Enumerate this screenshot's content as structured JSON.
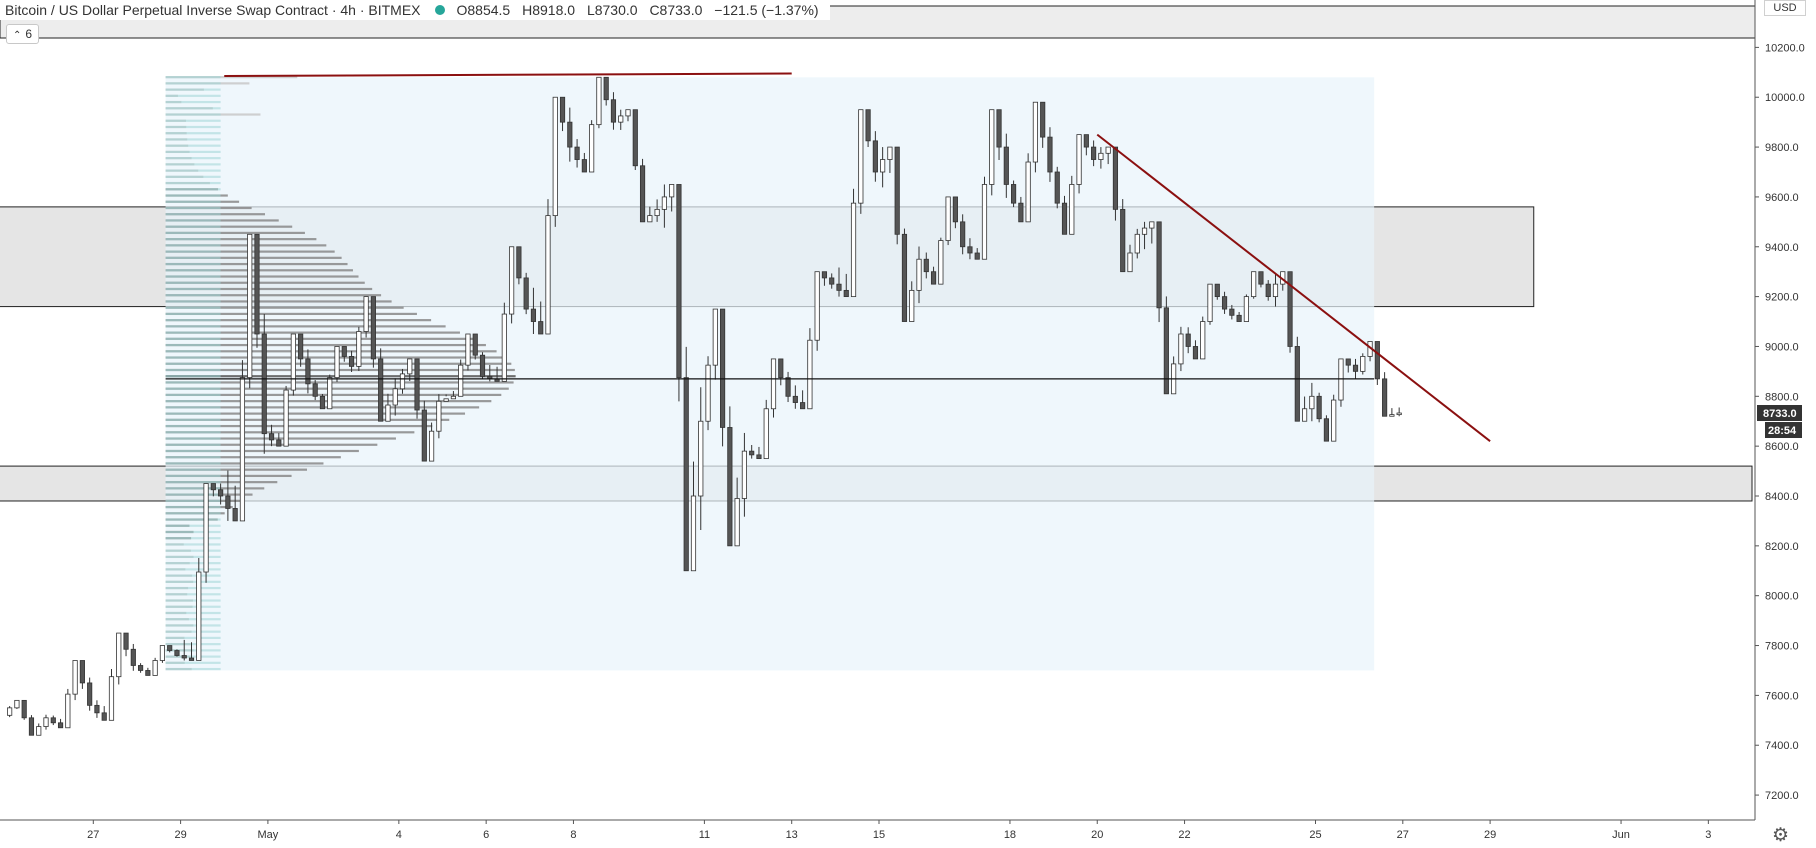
{
  "header": {
    "title": "Bitcoin / US Dollar Perpetual Inverse Swap Contract · 4h · BITMEX",
    "open": "O8854.5",
    "high": "H8918.0",
    "low": "L8730.0",
    "close": "C8733.0",
    "change": "−121.5 (−1.37%)",
    "status_color": "#26a69a"
  },
  "collapse_button": {
    "label": "6",
    "icon": "chevron-up-icon"
  },
  "currency_label": "USD",
  "settings_icon": "gear-icon",
  "price_labels": {
    "last": "8733.0",
    "countdown": "28:54"
  },
  "colors": {
    "bull_body": "#ffffff",
    "bear_body": "#555555",
    "wick": "#333333",
    "trendline": "#8b1010",
    "zone_fill": "#e5e5e5",
    "range_fill": "#e8f4fb",
    "volume_profile": "#888888"
  },
  "chart_data": {
    "type": "candlestick",
    "title": "Bitcoin / US Dollar Perpetual Inverse Swap Contract · 4h · BITMEX",
    "interval": "4h",
    "y_axis": {
      "ticks": [
        7200,
        7400,
        7600,
        7800,
        8000,
        8200,
        8400,
        8600,
        8800,
        9000,
        9200,
        9400,
        9600,
        9800,
        10000,
        10200
      ],
      "tick_labels": [
        "7200.0",
        "7400.0",
        "7600.0",
        "7800.0",
        "8000.0",
        "8200.0",
        "8400.0",
        "8600.0",
        "8800.0",
        "9000.0",
        "9200.0",
        "9400.0",
        "9600.0",
        "9800.0",
        "10000.0",
        "10200.0"
      ],
      "range": [
        7100,
        10350
      ],
      "position": "right"
    },
    "x_axis": {
      "ticks": [
        "Apr 27",
        "Apr 29",
        "May 1",
        "May 4",
        "May 6",
        "May 8",
        "May 11",
        "May 13",
        "May 15",
        "May 18",
        "May 20",
        "May 22",
        "May 25",
        "May 27",
        "May 29",
        "Jun 1",
        "Jun 3"
      ],
      "tick_labels": [
        "27",
        "29",
        "May",
        "4",
        "6",
        "8",
        "11",
        "13",
        "15",
        "18",
        "20",
        "22",
        "25",
        "27",
        "29",
        "Jun",
        "3"
      ],
      "range": [
        "2020-04-25",
        "2020-06-04"
      ]
    },
    "candles_daily": [
      {
        "date": "2020-04-25",
        "open": 7520,
        "high": 7580,
        "low": 7440,
        "close": 7510
      },
      {
        "date": "2020-04-26",
        "open": 7510,
        "high": 7740,
        "low": 7470,
        "close": 7560
      },
      {
        "date": "2020-04-27",
        "open": 7560,
        "high": 7850,
        "low": 7500,
        "close": 7720
      },
      {
        "date": "2020-04-28",
        "open": 7720,
        "high": 7800,
        "low": 7680,
        "close": 7760
      },
      {
        "date": "2020-04-29",
        "open": 7760,
        "high": 8450,
        "low": 7740,
        "close": 8400
      },
      {
        "date": "2020-04-30",
        "open": 8400,
        "high": 9450,
        "low": 8300,
        "close": 8650
      },
      {
        "date": "2020-05-01",
        "open": 8650,
        "high": 9050,
        "low": 8600,
        "close": 8850
      },
      {
        "date": "2020-05-02",
        "open": 8850,
        "high": 9000,
        "low": 8750,
        "close": 8920
      },
      {
        "date": "2020-05-03",
        "open": 8920,
        "high": 9200,
        "low": 8700,
        "close": 8830
      },
      {
        "date": "2020-05-04",
        "open": 8830,
        "high": 8950,
        "low": 8540,
        "close": 8780
      },
      {
        "date": "2020-05-05",
        "open": 8780,
        "high": 9050,
        "low": 8800,
        "close": 8880
      },
      {
        "date": "2020-05-06",
        "open": 8880,
        "high": 9400,
        "low": 8860,
        "close": 9150
      },
      {
        "date": "2020-05-07",
        "open": 9150,
        "high": 10000,
        "low": 9050,
        "close": 9800
      },
      {
        "date": "2020-05-08",
        "open": 9800,
        "high": 10080,
        "low": 9700,
        "close": 9900
      },
      {
        "date": "2020-05-09",
        "open": 9900,
        "high": 9950,
        "low": 9500,
        "close": 9550
      },
      {
        "date": "2020-05-10",
        "open": 9550,
        "high": 9650,
        "low": 8100,
        "close": 8700
      },
      {
        "date": "2020-05-11",
        "open": 8700,
        "high": 9150,
        "low": 8200,
        "close": 8580
      },
      {
        "date": "2020-05-12",
        "open": 8580,
        "high": 8950,
        "low": 8550,
        "close": 8800
      },
      {
        "date": "2020-05-13",
        "open": 8800,
        "high": 9300,
        "low": 8750,
        "close": 9250
      },
      {
        "date": "2020-05-14",
        "open": 9250,
        "high": 9950,
        "low": 9200,
        "close": 9700
      },
      {
        "date": "2020-05-15",
        "open": 9700,
        "high": 9800,
        "low": 9100,
        "close": 9350
      },
      {
        "date": "2020-05-16",
        "open": 9350,
        "high": 9600,
        "low": 9250,
        "close": 9400
      },
      {
        "date": "2020-05-17",
        "open": 9400,
        "high": 9950,
        "low": 9350,
        "close": 9650
      },
      {
        "date": "2020-05-18",
        "open": 9650,
        "high": 9980,
        "low": 9500,
        "close": 9700
      },
      {
        "date": "2020-05-19",
        "open": 9700,
        "high": 9850,
        "low": 9450,
        "close": 9750
      },
      {
        "date": "2020-05-20",
        "open": 9750,
        "high": 9800,
        "low": 9300,
        "close": 9450
      },
      {
        "date": "2020-05-21",
        "open": 9450,
        "high": 9500,
        "low": 8810,
        "close": 9050
      },
      {
        "date": "2020-05-22",
        "open": 9050,
        "high": 9250,
        "low": 8950,
        "close": 9150
      },
      {
        "date": "2020-05-23",
        "open": 9150,
        "high": 9300,
        "low": 9100,
        "close": 9200
      },
      {
        "date": "2020-05-24",
        "open": 9200,
        "high": 9300,
        "low": 8700,
        "close": 8800
      },
      {
        "date": "2020-05-25",
        "open": 8800,
        "high": 8950,
        "low": 8620,
        "close": 8900
      },
      {
        "date": "2020-05-26",
        "open": 8900,
        "high": 9020,
        "low": 8720,
        "close": 8733
      }
    ],
    "current_price": 8733.0,
    "horizontal_line": 8870,
    "zones": [
      {
        "name": "resistance-zone",
        "from": 9160,
        "to": 9560,
        "start": "2020-04-25",
        "end": "2020-05-30"
      },
      {
        "name": "support-zone",
        "from": 8380,
        "to": 8520,
        "start": "2020-04-25",
        "end": "2020-06-04"
      }
    ],
    "range_box": {
      "from_date": "2020-04-29",
      "to_date": "2020-05-26",
      "low": 7700,
      "high": 10080
    },
    "trendlines": [
      {
        "name": "top-line",
        "from": {
          "date": "2020-04-30",
          "price": 10085
        },
        "to": {
          "date": "2020-05-13",
          "price": 10095
        }
      },
      {
        "name": "descending-trendline",
        "from": {
          "date": "2020-05-20",
          "price": 9850
        },
        "to": {
          "date": "2020-05-29",
          "price": 8620
        }
      }
    ],
    "volume_profile": {
      "price_range": [
        7700,
        10080
      ],
      "poc_price": 8880,
      "description": "Horizontal volume-by-price histogram anchored at range start"
    },
    "grid": false,
    "legend": "none"
  }
}
